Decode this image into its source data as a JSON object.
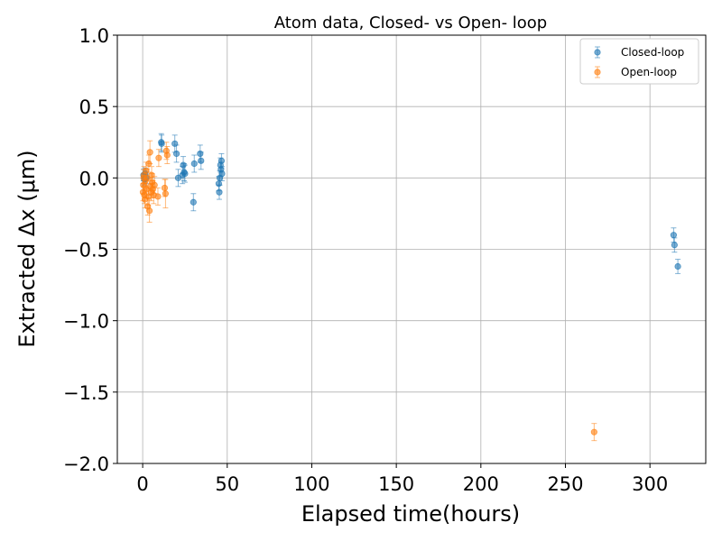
{
  "chart_data": {
    "type": "scatter",
    "title": "Atom data, Closed- vs Open- loop",
    "xlabel": "Elapsed time(hours)",
    "ylabel": "Extracted Δx (μm)",
    "xlim": [
      -15,
      333
    ],
    "ylim": [
      -2.0,
      1.0
    ],
    "xticks": [
      0,
      50,
      100,
      150,
      200,
      250,
      300
    ],
    "yticks": [
      -2.0,
      -1.5,
      -1.0,
      -0.5,
      0.0,
      0.5,
      1.0
    ],
    "ytick_labels": [
      "−2.0",
      "−1.5",
      "−1.0",
      "−0.5",
      "0.0",
      "0.5",
      "1.0"
    ],
    "grid": true,
    "legend_position": "top-right",
    "series": [
      {
        "name": "Closed-loop",
        "color": "#1f77b4",
        "points": [
          {
            "x": 0.5,
            "y": 0.02,
            "err": 0.04
          },
          {
            "x": 1.0,
            "y": -0.01,
            "err": 0.04
          },
          {
            "x": 1.5,
            "y": 0.03,
            "err": 0.04
          },
          {
            "x": 2.0,
            "y": 0.0,
            "err": 0.04
          },
          {
            "x": 11.0,
            "y": 0.25,
            "err": 0.06
          },
          {
            "x": 11.2,
            "y": 0.24,
            "err": 0.06
          },
          {
            "x": 19.0,
            "y": 0.24,
            "err": 0.06
          },
          {
            "x": 20.0,
            "y": 0.17,
            "err": 0.06
          },
          {
            "x": 21.0,
            "y": 0.0,
            "err": 0.06
          },
          {
            "x": 23.5,
            "y": 0.02,
            "err": 0.06
          },
          {
            "x": 24.0,
            "y": 0.09,
            "err": 0.06
          },
          {
            "x": 24.5,
            "y": 0.04,
            "err": 0.06
          },
          {
            "x": 25.0,
            "y": 0.03,
            "err": 0.06
          },
          {
            "x": 30.0,
            "y": -0.17,
            "err": 0.06
          },
          {
            "x": 30.5,
            "y": 0.1,
            "err": 0.06
          },
          {
            "x": 34.0,
            "y": 0.17,
            "err": 0.06
          },
          {
            "x": 34.5,
            "y": 0.12,
            "err": 0.06
          },
          {
            "x": 45.0,
            "y": -0.04,
            "err": 0.05
          },
          {
            "x": 45.3,
            "y": -0.1,
            "err": 0.05
          },
          {
            "x": 45.6,
            "y": 0.0,
            "err": 0.05
          },
          {
            "x": 46.0,
            "y": 0.09,
            "err": 0.05
          },
          {
            "x": 46.3,
            "y": 0.06,
            "err": 0.05
          },
          {
            "x": 46.6,
            "y": 0.12,
            "err": 0.05
          },
          {
            "x": 46.9,
            "y": 0.03,
            "err": 0.05
          },
          {
            "x": 314.0,
            "y": -0.4,
            "err": 0.05
          },
          {
            "x": 314.5,
            "y": -0.47,
            "err": 0.05
          },
          {
            "x": 316.5,
            "y": -0.62,
            "err": 0.05
          }
        ]
      },
      {
        "name": "Open-loop",
        "color": "#ff7f0e",
        "points": [
          {
            "x": 0.2,
            "y": -0.1,
            "err": 0.06
          },
          {
            "x": 0.4,
            "y": -0.05,
            "err": 0.06
          },
          {
            "x": 0.6,
            "y": 0.0,
            "err": 0.06
          },
          {
            "x": 0.8,
            "y": 0.02,
            "err": 0.06
          },
          {
            "x": 1.0,
            "y": -0.12,
            "err": 0.06
          },
          {
            "x": 1.3,
            "y": -0.15,
            "err": 0.06
          },
          {
            "x": 1.6,
            "y": -0.02,
            "err": 0.06
          },
          {
            "x": 2.0,
            "y": 0.05,
            "err": 0.06
          },
          {
            "x": 2.3,
            "y": -0.08,
            "err": 0.06
          },
          {
            "x": 2.6,
            "y": 0.0,
            "err": 0.06
          },
          {
            "x": 3.0,
            "y": -0.2,
            "err": 0.06
          },
          {
            "x": 3.3,
            "y": -0.13,
            "err": 0.06
          },
          {
            "x": 3.6,
            "y": 0.1,
            "err": 0.06
          },
          {
            "x": 4.0,
            "y": -0.23,
            "err": 0.08
          },
          {
            "x": 4.3,
            "y": 0.18,
            "err": 0.08
          },
          {
            "x": 4.6,
            "y": -0.06,
            "err": 0.06
          },
          {
            "x": 5.0,
            "y": -0.1,
            "err": 0.06
          },
          {
            "x": 5.3,
            "y": 0.02,
            "err": 0.06
          },
          {
            "x": 5.6,
            "y": -0.03,
            "err": 0.06
          },
          {
            "x": 6.0,
            "y": -0.08,
            "err": 0.06
          },
          {
            "x": 6.5,
            "y": -0.12,
            "err": 0.06
          },
          {
            "x": 7.0,
            "y": -0.05,
            "err": 0.06
          },
          {
            "x": 9.0,
            "y": -0.13,
            "err": 0.06
          },
          {
            "x": 9.5,
            "y": 0.14,
            "err": 0.06
          },
          {
            "x": 13.0,
            "y": -0.07,
            "err": 0.06
          },
          {
            "x": 13.5,
            "y": -0.11,
            "err": 0.1
          },
          {
            "x": 14.0,
            "y": 0.19,
            "err": 0.06
          },
          {
            "x": 14.5,
            "y": 0.16,
            "err": 0.06
          },
          {
            "x": 267.0,
            "y": -1.78,
            "err": 0.06
          }
        ]
      }
    ]
  }
}
